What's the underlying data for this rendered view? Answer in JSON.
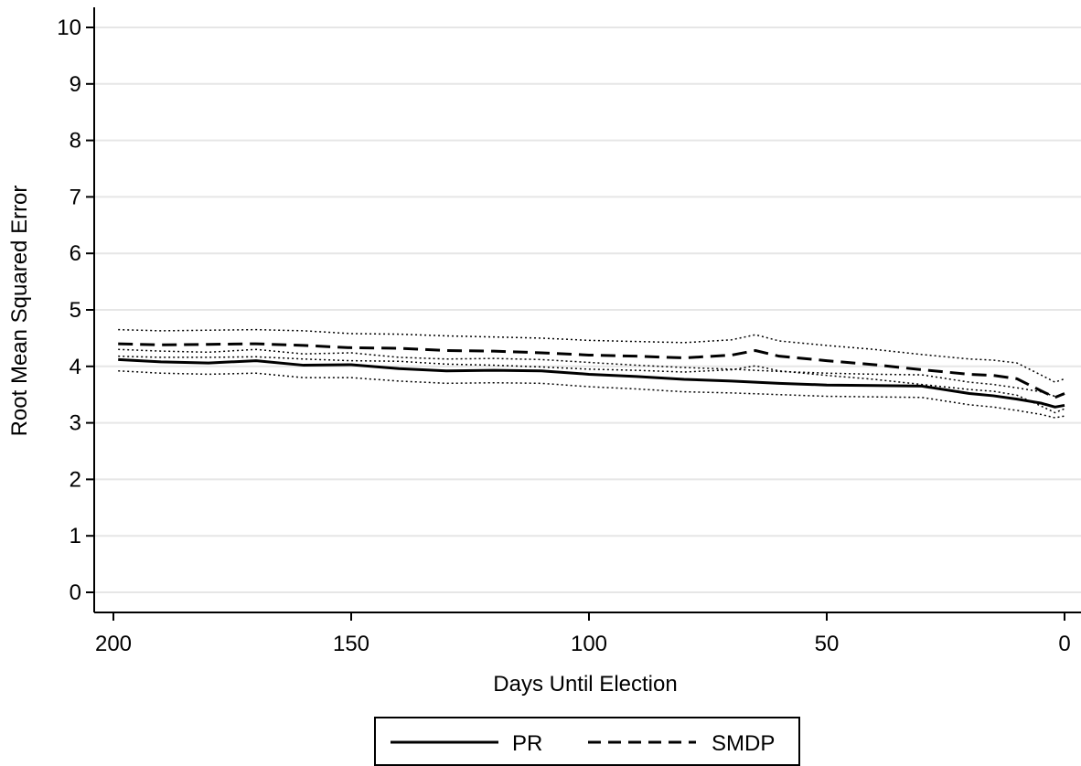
{
  "chart_data": {
    "type": "line",
    "title": "",
    "xlabel": "Days Until Election",
    "ylabel": "Root Mean Squared Error",
    "xlim": [
      200,
      0
    ],
    "ylim": [
      0,
      10
    ],
    "x_ticks": [
      "200",
      "150",
      "100",
      "50",
      "0"
    ],
    "y_ticks": [
      "0",
      "1",
      "2",
      "3",
      "4",
      "5",
      "6",
      "7",
      "8",
      "9",
      "10"
    ],
    "grid": true,
    "legend_position": "bottom",
    "legend": [
      "PR",
      "SMDP"
    ],
    "series": [
      {
        "name": "PR",
        "style": "solid",
        "x": [
          199,
          190,
          180,
          170,
          160,
          150,
          140,
          130,
          120,
          110,
          100,
          90,
          80,
          70,
          60,
          50,
          40,
          30,
          20,
          15,
          10,
          5,
          2,
          0
        ],
        "y": [
          4.12,
          4.08,
          4.06,
          4.1,
          4.02,
          4.03,
          3.96,
          3.92,
          3.93,
          3.92,
          3.86,
          3.82,
          3.77,
          3.74,
          3.7,
          3.67,
          3.66,
          3.65,
          3.52,
          3.48,
          3.42,
          3.35,
          3.28,
          3.31
        ],
        "ci_lower": [
          3.92,
          3.88,
          3.86,
          3.88,
          3.8,
          3.8,
          3.74,
          3.7,
          3.71,
          3.7,
          3.64,
          3.6,
          3.55,
          3.53,
          3.5,
          3.47,
          3.46,
          3.45,
          3.32,
          3.28,
          3.22,
          3.15,
          3.09,
          3.12
        ],
        "ci_upper": [
          4.3,
          4.27,
          4.25,
          4.3,
          4.22,
          4.24,
          4.16,
          4.13,
          4.14,
          4.12,
          4.07,
          4.02,
          3.98,
          3.95,
          3.91,
          3.88,
          3.86,
          3.85,
          3.72,
          3.68,
          3.62,
          3.55,
          3.47,
          3.5
        ]
      },
      {
        "name": "SMDP",
        "style": "dashed",
        "x": [
          199,
          190,
          180,
          170,
          160,
          150,
          140,
          130,
          120,
          110,
          100,
          90,
          80,
          70,
          65,
          60,
          50,
          40,
          30,
          20,
          15,
          10,
          5,
          2,
          0
        ],
        "y": [
          4.4,
          4.38,
          4.39,
          4.4,
          4.37,
          4.33,
          4.32,
          4.28,
          4.27,
          4.24,
          4.2,
          4.18,
          4.15,
          4.2,
          4.28,
          4.18,
          4.1,
          4.03,
          3.94,
          3.86,
          3.84,
          3.78,
          3.57,
          3.45,
          3.52
        ],
        "ci_lower": [
          4.18,
          4.16,
          4.16,
          4.17,
          4.13,
          4.1,
          4.09,
          4.04,
          4.02,
          3.99,
          3.95,
          3.93,
          3.9,
          3.94,
          4.01,
          3.92,
          3.84,
          3.77,
          3.68,
          3.59,
          3.56,
          3.49,
          3.3,
          3.18,
          3.25
        ],
        "ci_upper": [
          4.65,
          4.63,
          4.64,
          4.65,
          4.63,
          4.58,
          4.57,
          4.54,
          4.52,
          4.5,
          4.46,
          4.44,
          4.42,
          4.47,
          4.56,
          4.45,
          4.37,
          4.3,
          4.21,
          4.13,
          4.11,
          4.06,
          3.85,
          3.72,
          3.78
        ]
      }
    ]
  }
}
